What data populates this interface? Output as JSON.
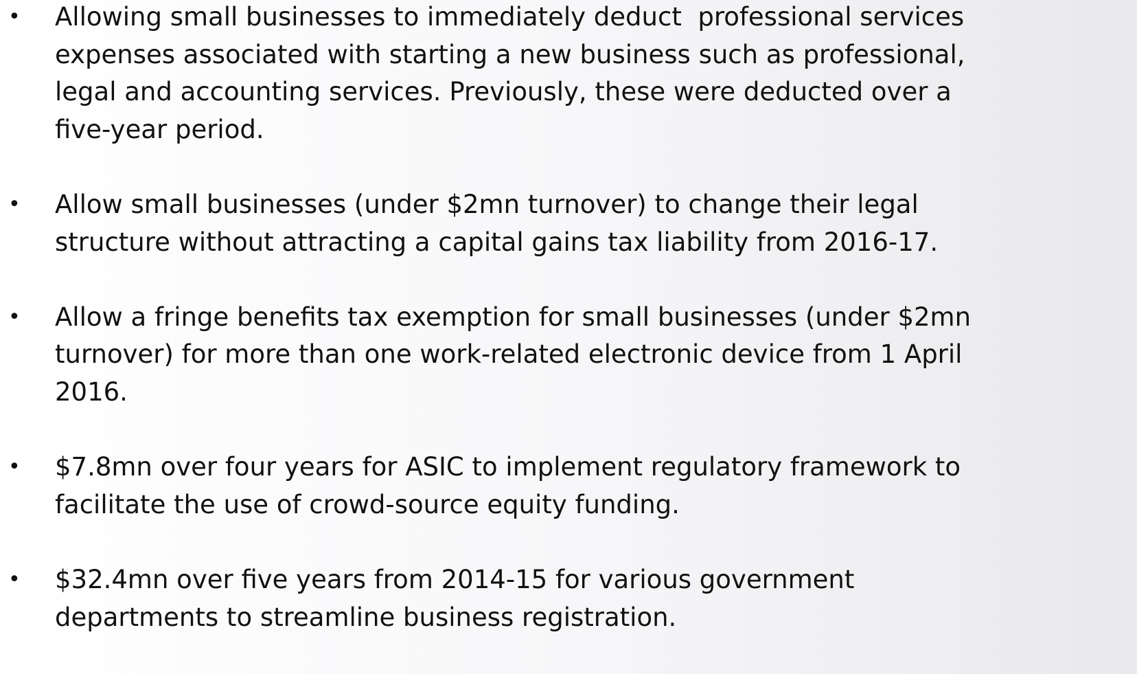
{
  "bullets": [
    {
      "lines": [
        "Allowing small businesses to immediately deduct  professional services",
        "expenses associated with starting a new business such as professional,",
        "legal and accounting services. Previously, these were deducted over a",
        "five-year period."
      ]
    },
    {
      "lines": [
        "Allow small businesses (under $2mn turnover) to change their legal",
        "structure without attracting a capital gains tax liability from 2016-17."
      ]
    },
    {
      "lines": [
        "Allow a fringe benefits tax exemption for small businesses (under $2mn",
        "turnover) for more than one work-related electronic device from 1 April",
        "2016."
      ]
    },
    {
      "lines": [
        "$7.8mn over four years for ASIC to implement regulatory framework to",
        "facilitate the use of crowd-source equity funding."
      ]
    },
    {
      "lines": [
        "$32.4mn over five years from 2014-15 for various government",
        "departments to streamline business registration."
      ]
    }
  ]
}
